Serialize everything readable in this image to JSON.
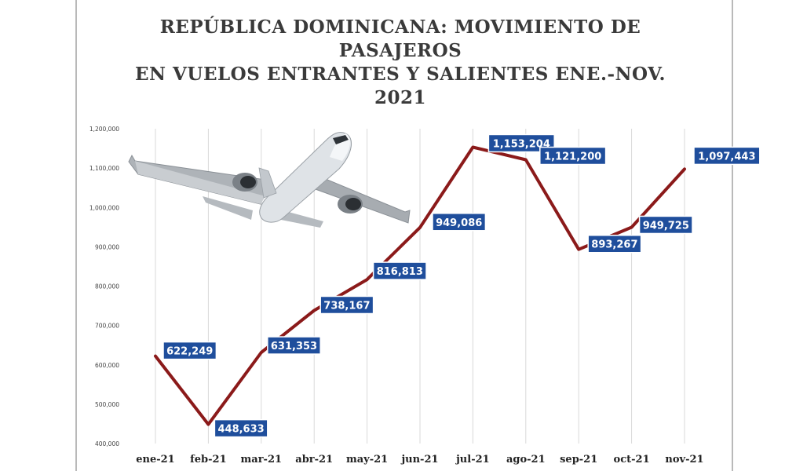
{
  "title_lines": [
    "REPÚBLICA DOMINICANA: MOVIMIENTO DE",
    "PASAJEROS",
    "EN VUELOS ENTRANTES Y SALIENTES ENE.-NOV.",
    "2021"
  ],
  "chart_data": {
    "type": "line",
    "title": "REPÚBLICA DOMINICANA: MOVIMIENTO DE PASAJEROS EN VUELOS ENTRANTES Y SALIENTES ENE.-NOV. 2021",
    "categories": [
      "ene-21",
      "feb-21",
      "mar-21",
      "abr-21",
      "may-21",
      "jun-21",
      "jul-21",
      "ago-21",
      "sep-21",
      "oct-21",
      "nov-21"
    ],
    "series": [
      {
        "values": [
          622249,
          448633,
          631353,
          738167,
          816813,
          949086,
          1153204,
          1121200,
          893267,
          949725,
          1097443
        ]
      }
    ],
    "data_labels": [
      "622,249",
      "448,633",
      "631,353",
      "738,167",
      "816,813",
      "949,086",
      "1,153,204",
      "1,121,200",
      "893,267",
      "949,725",
      "1,097,443"
    ],
    "ylim": [
      400000,
      1200000
    ],
    "ytick_values": [
      400000,
      500000,
      600000,
      700000,
      800000,
      900000,
      1000000,
      1100000,
      1200000
    ],
    "ytick_labels": [
      "400,000",
      "500,000",
      "600,000",
      "700,000",
      "800,000",
      "900,000",
      "1,000,000",
      "1,100,000",
      "1,200,000"
    ],
    "gridlines": "vertical",
    "line_color": "#8b1a1a",
    "label_fill": "#1f4e9c",
    "xlabel": "",
    "ylabel": ""
  }
}
